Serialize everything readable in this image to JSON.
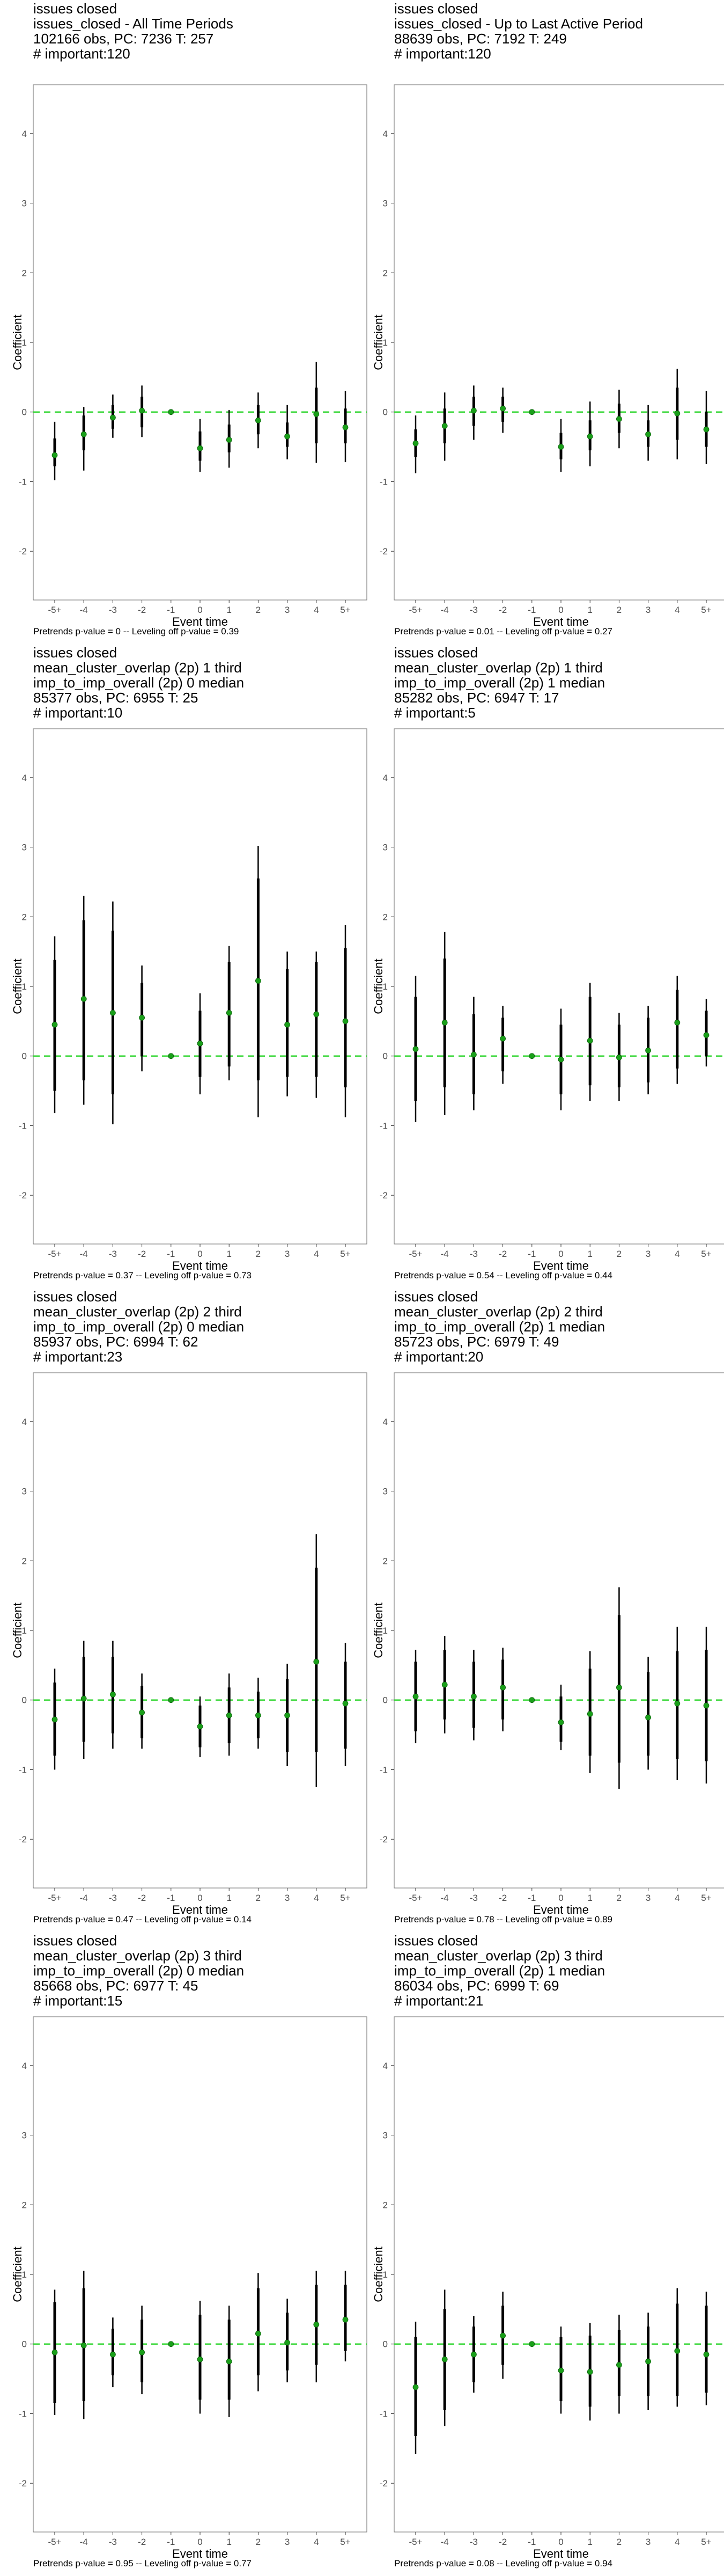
{
  "chart_data": [
    {
      "type": "scatter",
      "subtitle_lines": [
        "issues closed",
        "issues_closed - All Time Periods",
        "102166 obs, PC: 7236 T: 257",
        "# important:120"
      ],
      "xlabel": "Event time",
      "ylabel": "Coefficient",
      "x_categories": [
        "-5+",
        "-4",
        "-3",
        "-2",
        "-1",
        "0",
        "1",
        "2",
        "3",
        "4",
        "5+"
      ],
      "ylim": [
        -2.7,
        4.7
      ],
      "yticks": [
        -2,
        -1,
        0,
        1,
        2,
        3,
        4
      ],
      "reference_line": 0,
      "estimate": [
        -0.62,
        -0.32,
        -0.08,
        0.02,
        0.0,
        -0.52,
        -0.4,
        -0.12,
        -0.35,
        -0.03,
        -0.22
      ],
      "ci_low": [
        -0.98,
        -0.84,
        -0.37,
        -0.36,
        0.0,
        -0.86,
        -0.8,
        -0.52,
        -0.68,
        -0.73,
        -0.72
      ],
      "ci_high": [
        -0.14,
        0.07,
        0.25,
        0.38,
        0.0,
        -0.1,
        0.03,
        0.28,
        0.1,
        0.72,
        0.3
      ],
      "inner_low": [
        -0.78,
        -0.55,
        -0.24,
        -0.22,
        0.0,
        -0.7,
        -0.58,
        -0.32,
        -0.5,
        -0.45,
        -0.45
      ],
      "inner_high": [
        -0.38,
        -0.05,
        0.1,
        0.22,
        0.0,
        -0.28,
        -0.18,
        0.1,
        -0.15,
        0.35,
        0.05
      ],
      "caption": "Pretrends p-value = 0 -- Leveling off p-value = 0.39"
    },
    {
      "type": "scatter",
      "subtitle_lines": [
        "issues closed",
        "issues_closed - Up to Last Active Period",
        "88639 obs, PC: 7192 T: 249",
        "# important:120"
      ],
      "xlabel": "Event time",
      "ylabel": "Coefficient",
      "x_categories": [
        "-5+",
        "-4",
        "-3",
        "-2",
        "-1",
        "0",
        "1",
        "2",
        "3",
        "4",
        "5+"
      ],
      "ylim": [
        -2.7,
        4.7
      ],
      "yticks": [
        -2,
        -1,
        0,
        1,
        2,
        3,
        4
      ],
      "reference_line": 0,
      "estimate": [
        -0.45,
        -0.2,
        0.02,
        0.05,
        0.0,
        -0.5,
        -0.35,
        -0.1,
        -0.32,
        -0.02,
        -0.25
      ],
      "ci_low": [
        -0.88,
        -0.7,
        -0.4,
        -0.3,
        0.0,
        -0.86,
        -0.78,
        -0.52,
        -0.7,
        -0.68,
        -0.75
      ],
      "ci_high": [
        -0.05,
        0.28,
        0.38,
        0.35,
        0.0,
        -0.1,
        0.15,
        0.32,
        0.1,
        0.62,
        0.3
      ],
      "inner_low": [
        -0.65,
        -0.45,
        -0.2,
        -0.14,
        0.0,
        -0.68,
        -0.55,
        -0.3,
        -0.5,
        -0.4,
        -0.5
      ],
      "inner_high": [
        -0.25,
        0.05,
        0.22,
        0.22,
        0.0,
        -0.3,
        -0.12,
        0.12,
        -0.12,
        0.35,
        0.0
      ],
      "caption": "Pretrends p-value = 0.01 -- Leveling off p-value = 0.27"
    },
    {
      "type": "scatter",
      "subtitle_lines": [
        "issues closed",
        "mean_cluster_overlap (2p) 1 third",
        "imp_to_imp_overall (2p) 0 median",
        "85377 obs, PC: 6955 T: 25",
        "# important:10"
      ],
      "xlabel": "Event time",
      "ylabel": "Coefficient",
      "x_categories": [
        "-5+",
        "-4",
        "-3",
        "-2",
        "-1",
        "0",
        "1",
        "2",
        "3",
        "4",
        "5+"
      ],
      "ylim": [
        -2.7,
        4.7
      ],
      "yticks": [
        -2,
        -1,
        0,
        1,
        2,
        3,
        4
      ],
      "reference_line": 0,
      "estimate": [
        0.45,
        0.82,
        0.62,
        0.55,
        0.0,
        0.18,
        0.62,
        1.08,
        0.45,
        0.6,
        0.5
      ],
      "ci_low": [
        -0.82,
        -0.7,
        -0.98,
        -0.22,
        0.0,
        -0.55,
        -0.35,
        -0.88,
        -0.58,
        -0.6,
        -0.88
      ],
      "ci_high": [
        1.72,
        2.3,
        2.22,
        1.3,
        0.0,
        0.9,
        1.58,
        3.02,
        1.5,
        1.5,
        1.88
      ],
      "inner_low": [
        -0.5,
        -0.35,
        -0.55,
        0.0,
        0.0,
        -0.3,
        -0.15,
        -0.35,
        -0.3,
        -0.3,
        -0.45
      ],
      "inner_high": [
        1.38,
        1.95,
        1.8,
        1.05,
        0.0,
        0.65,
        1.35,
        2.55,
        1.25,
        1.35,
        1.55
      ],
      "caption": "Pretrends p-value = 0.37 -- Leveling off p-value = 0.73"
    },
    {
      "type": "scatter",
      "subtitle_lines": [
        "issues closed",
        "mean_cluster_overlap (2p) 1 third",
        "imp_to_imp_overall (2p) 1 median",
        "85282 obs, PC: 6947 T: 17",
        "# important:5"
      ],
      "xlabel": "Event time",
      "ylabel": "Coefficient",
      "x_categories": [
        "-5+",
        "-4",
        "-3",
        "-2",
        "-1",
        "0",
        "1",
        "2",
        "3",
        "4",
        "5+"
      ],
      "ylim": [
        -2.7,
        4.7
      ],
      "yticks": [
        -2,
        -1,
        0,
        1,
        2,
        3,
        4
      ],
      "reference_line": 0,
      "estimate": [
        0.1,
        0.48,
        0.02,
        0.25,
        0.0,
        -0.05,
        0.22,
        -0.02,
        0.08,
        0.48,
        0.3
      ],
      "ci_low": [
        -0.95,
        -0.85,
        -0.78,
        -0.4,
        0.0,
        -0.78,
        -0.65,
        -0.65,
        -0.55,
        -0.4,
        -0.15
      ],
      "ci_high": [
        1.15,
        1.78,
        0.85,
        0.72,
        0.0,
        0.68,
        1.05,
        0.62,
        0.72,
        1.15,
        0.82
      ],
      "inner_low": [
        -0.65,
        -0.45,
        -0.55,
        -0.22,
        0.0,
        -0.55,
        -0.42,
        -0.45,
        -0.38,
        -0.18,
        0.0
      ],
      "inner_high": [
        0.85,
        1.4,
        0.6,
        0.55,
        0.0,
        0.45,
        0.85,
        0.45,
        0.55,
        0.95,
        0.65
      ],
      "caption": "Pretrends p-value = 0.54 -- Leveling off p-value = 0.44"
    },
    {
      "type": "scatter",
      "subtitle_lines": [
        "issues closed",
        "mean_cluster_overlap (2p) 2 third",
        "imp_to_imp_overall (2p) 0 median",
        "85937 obs, PC: 6994 T: 62",
        "# important:23"
      ],
      "xlabel": "Event time",
      "ylabel": "Coefficient",
      "x_categories": [
        "-5+",
        "-4",
        "-3",
        "-2",
        "-1",
        "0",
        "1",
        "2",
        "3",
        "4",
        "5+"
      ],
      "ylim": [
        -2.7,
        4.7
      ],
      "yticks": [
        -2,
        -1,
        0,
        1,
        2,
        3,
        4
      ],
      "reference_line": 0,
      "estimate": [
        -0.28,
        0.02,
        0.08,
        -0.18,
        0.0,
        -0.38,
        -0.22,
        -0.22,
        -0.22,
        0.55,
        -0.05
      ],
      "ci_low": [
        -1.0,
        -0.85,
        -0.7,
        -0.7,
        0.0,
        -0.82,
        -0.8,
        -0.7,
        -0.95,
        -1.25,
        -0.95
      ],
      "ci_high": [
        0.45,
        0.85,
        0.85,
        0.38,
        0.0,
        0.05,
        0.38,
        0.32,
        0.52,
        2.38,
        0.82
      ],
      "inner_low": [
        -0.8,
        -0.6,
        -0.48,
        -0.55,
        0.0,
        -0.68,
        -0.62,
        -0.55,
        -0.75,
        -0.75,
        -0.7
      ],
      "inner_high": [
        0.25,
        0.62,
        0.62,
        0.2,
        0.0,
        -0.08,
        0.18,
        0.12,
        0.3,
        1.9,
        0.55
      ],
      "caption": "Pretrends p-value = 0.47 -- Leveling off p-value = 0.14"
    },
    {
      "type": "scatter",
      "subtitle_lines": [
        "issues closed",
        "mean_cluster_overlap (2p) 2 third",
        "imp_to_imp_overall (2p) 1 median",
        "85723 obs, PC: 6979 T: 49",
        "# important:20"
      ],
      "xlabel": "Event time",
      "ylabel": "Coefficient",
      "x_categories": [
        "-5+",
        "-4",
        "-3",
        "-2",
        "-1",
        "0",
        "1",
        "2",
        "3",
        "4",
        "5+"
      ],
      "ylim": [
        -2.7,
        4.7
      ],
      "yticks": [
        -2,
        -1,
        0,
        1,
        2,
        3,
        4
      ],
      "reference_line": 0,
      "estimate": [
        0.05,
        0.22,
        0.05,
        0.18,
        0.0,
        -0.32,
        -0.2,
        0.18,
        -0.25,
        -0.05,
        -0.08
      ],
      "ci_low": [
        -0.62,
        -0.48,
        -0.58,
        -0.45,
        0.0,
        -0.72,
        -1.05,
        -1.28,
        -1.0,
        -1.15,
        -1.2
      ],
      "ci_high": [
        0.72,
        0.92,
        0.72,
        0.75,
        0.0,
        0.22,
        0.7,
        1.62,
        0.62,
        1.05,
        1.05
      ],
      "inner_low": [
        -0.45,
        -0.28,
        -0.4,
        -0.28,
        0.0,
        -0.6,
        -0.8,
        -0.9,
        -0.8,
        -0.85,
        -0.88
      ],
      "inner_high": [
        0.55,
        0.72,
        0.55,
        0.58,
        0.0,
        0.05,
        0.45,
        1.22,
        0.4,
        0.7,
        0.72
      ],
      "caption": "Pretrends p-value = 0.78 -- Leveling off p-value = 0.89"
    },
    {
      "type": "scatter",
      "subtitle_lines": [
        "issues closed",
        "mean_cluster_overlap (2p) 3 third",
        "imp_to_imp_overall (2p) 0 median",
        "85668 obs, PC: 6977 T: 45",
        "# important:15"
      ],
      "xlabel": "Event time",
      "ylabel": "Coefficient",
      "x_categories": [
        "-5+",
        "-4",
        "-3",
        "-2",
        "-1",
        "0",
        "1",
        "2",
        "3",
        "4",
        "5+"
      ],
      "ylim": [
        -2.7,
        4.7
      ],
      "yticks": [
        -2,
        -1,
        0,
        1,
        2,
        3,
        4
      ],
      "reference_line": 0,
      "estimate": [
        -0.12,
        -0.02,
        -0.15,
        -0.12,
        0.0,
        -0.22,
        -0.25,
        0.15,
        0.02,
        0.28,
        0.35
      ],
      "ci_low": [
        -1.02,
        -1.08,
        -0.62,
        -0.72,
        0.0,
        -1.0,
        -1.05,
        -0.68,
        -0.55,
        -0.55,
        -0.25
      ],
      "ci_high": [
        0.78,
        1.05,
        0.38,
        0.55,
        0.0,
        0.62,
        0.55,
        1.02,
        0.65,
        1.05,
        1.05
      ],
      "inner_low": [
        -0.85,
        -0.82,
        -0.45,
        -0.55,
        0.0,
        -0.8,
        -0.8,
        -0.45,
        -0.38,
        -0.3,
        -0.1
      ],
      "inner_high": [
        0.6,
        0.8,
        0.22,
        0.35,
        0.0,
        0.42,
        0.35,
        0.8,
        0.45,
        0.85,
        0.85
      ],
      "caption": "Pretrends p-value = 0.95 -- Leveling off p-value = 0.77"
    },
    {
      "type": "scatter",
      "subtitle_lines": [
        "issues closed",
        "mean_cluster_overlap (2p) 3 third",
        "imp_to_imp_overall (2p) 1 median",
        "86034 obs, PC: 6999 T: 69",
        "# important:21"
      ],
      "xlabel": "Event time",
      "ylabel": "Coefficient",
      "x_categories": [
        "-5+",
        "-4",
        "-3",
        "-2",
        "-1",
        "0",
        "1",
        "2",
        "3",
        "4",
        "5+"
      ],
      "ylim": [
        -2.7,
        4.7
      ],
      "yticks": [
        -2,
        -1,
        0,
        1,
        2,
        3,
        4
      ],
      "reference_line": 0,
      "estimate": [
        -0.62,
        -0.22,
        -0.15,
        0.12,
        0.0,
        -0.38,
        -0.4,
        -0.3,
        -0.25,
        -0.1,
        -0.15
      ],
      "ci_low": [
        -1.58,
        -1.18,
        -0.7,
        -0.5,
        0.0,
        -1.0,
        -1.1,
        -1.0,
        -0.95,
        -0.9,
        -0.88
      ],
      "ci_high": [
        0.32,
        0.78,
        0.4,
        0.75,
        0.0,
        0.25,
        0.3,
        0.42,
        0.45,
        0.8,
        0.75
      ],
      "inner_low": [
        -1.32,
        -0.95,
        -0.55,
        -0.3,
        0.0,
        -0.82,
        -0.9,
        -0.75,
        -0.75,
        -0.75,
        -0.7
      ],
      "inner_high": [
        0.1,
        0.5,
        0.25,
        0.55,
        0.0,
        0.1,
        0.12,
        0.2,
        0.25,
        0.58,
        0.55
      ],
      "caption": "Pretrends p-value = 0.08 -- Leveling off p-value = 0.94"
    }
  ],
  "colors": {
    "point": "#1aa01a",
    "reference_line": "#33d633",
    "bars": "#000000",
    "panel_border": "#7f7f7f",
    "tick_text": "#4d4d4d"
  }
}
